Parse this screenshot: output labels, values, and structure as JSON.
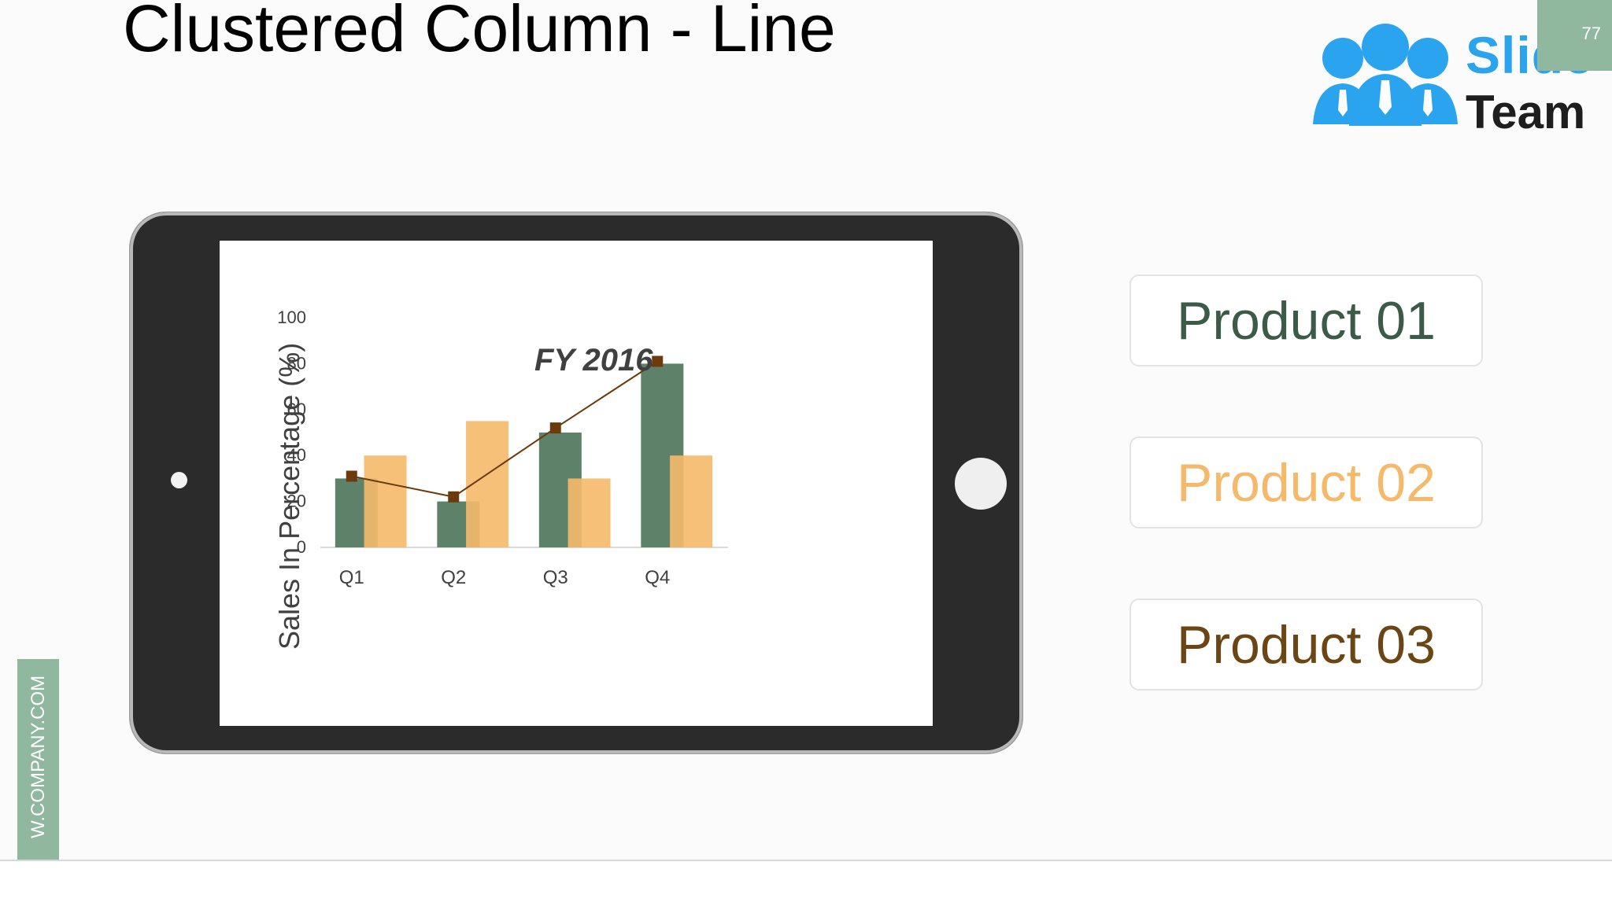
{
  "slide": {
    "title": "Clustered Column - Line",
    "page_number": "77",
    "side_tab_text": "W.COMPANY.COM"
  },
  "logo": {
    "line1": "Slide",
    "line2": "Team",
    "icon": "people-group-icon",
    "color": "#2aa4ee"
  },
  "legend": {
    "items": [
      {
        "label": "Product 01",
        "color": "#3c5a48"
      },
      {
        "label": "Product 02",
        "color": "#f5b96a"
      },
      {
        "label": "Product 03",
        "color": "#6b4514"
      }
    ]
  },
  "chart_data": {
    "type": "bar",
    "title": "FY 2016",
    "xlabel": "",
    "ylabel": "Sales In Percentage (%)",
    "categories": [
      "Q1",
      "Q2",
      "Q3",
      "Q4"
    ],
    "ylim": [
      0,
      100
    ],
    "yticks": [
      0,
      20,
      40,
      60,
      80,
      100
    ],
    "grid": false,
    "series": [
      {
        "name": "Product 01",
        "type": "bar",
        "color": "#5e8169",
        "values": [
          30,
          20,
          50,
          80
        ]
      },
      {
        "name": "Product 02",
        "type": "bar",
        "color": "#f5b96a",
        "values": [
          40,
          55,
          30,
          40
        ]
      },
      {
        "name": "Product 03",
        "type": "line",
        "color": "#6b3b0c",
        "values": [
          31,
          22,
          52,
          81
        ]
      }
    ]
  }
}
